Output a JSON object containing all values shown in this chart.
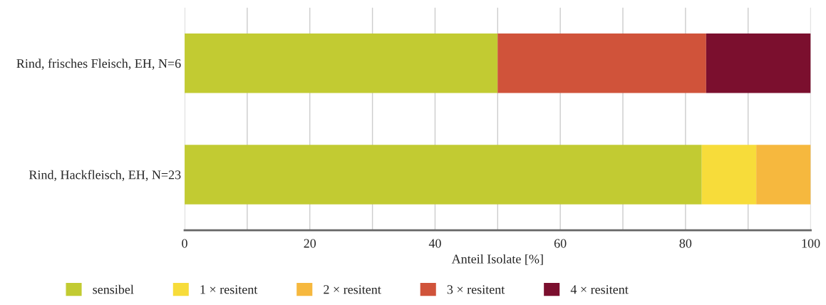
{
  "chart_data": {
    "type": "bar",
    "orientation": "horizontal",
    "stacked": true,
    "categories": [
      "Rind, frisches Fleisch, EH, N=6",
      "Rind, Hackfleisch, EH, N=23"
    ],
    "series": [
      {
        "name": "sensibel",
        "color": "#c2cb32",
        "values": [
          50,
          82.6
        ]
      },
      {
        "name": "1 × resitent",
        "color": "#f7dc3a",
        "values": [
          0,
          8.7
        ]
      },
      {
        "name": "2 × resitent",
        "color": "#f6b83e",
        "values": [
          0,
          8.7
        ]
      },
      {
        "name": "3 × resitent",
        "color": "#d0533a",
        "values": [
          33.3,
          0
        ]
      },
      {
        "name": "4 × resitent",
        "color": "#7b0f2e",
        "values": [
          16.7,
          0
        ]
      }
    ],
    "xlabel": "Anteil Isolate [%]",
    "xlim": [
      0,
      100
    ],
    "xticks": [
      0,
      {
        "value": 10,
        "label": null
      },
      20,
      {
        "value": 30,
        "label": null
      },
      40,
      {
        "value": 50,
        "label": null
      },
      60,
      {
        "value": 70,
        "label": null
      },
      80,
      {
        "value": 90,
        "label": null
      },
      100
    ],
    "grid": "x",
    "legend": "bottom"
  }
}
